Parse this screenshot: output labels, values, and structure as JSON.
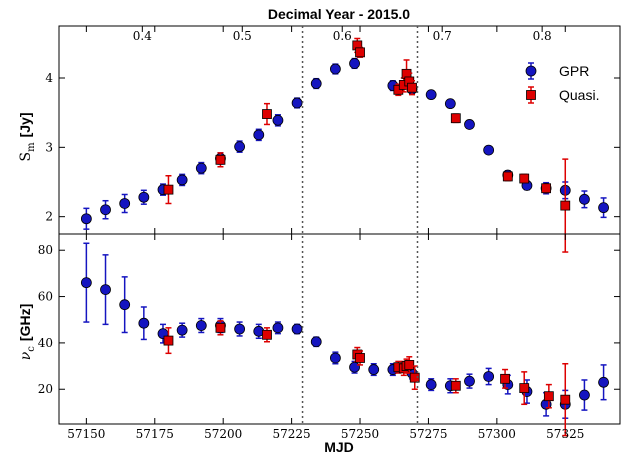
{
  "chart_data": {
    "type": "scatter",
    "top_axis_title": "Decimal Year - 2015.0",
    "top_ticks": [
      "0.4",
      "0.5",
      "0.6",
      "0.7",
      "0.8"
    ],
    "top_tick_values": [
      0.4,
      0.5,
      0.6,
      0.7,
      0.8
    ],
    "top_axis_conversion": {
      "year_fraction_at_x0": 0.5603,
      "x0": 57229,
      "days_per_year": 365.25
    },
    "xlabel": "MJD",
    "xticks": [
      "57150",
      "57175",
      "57200",
      "57225",
      "57250",
      "57275",
      "57300",
      "57325"
    ],
    "xtick_values": [
      57150,
      57175,
      57200,
      57225,
      57250,
      57275,
      57300,
      57325
    ],
    "xlim": [
      57140,
      57345
    ],
    "vlines": [
      57229,
      57271
    ],
    "legend": {
      "placement": "top-right",
      "entries": [
        "GPR",
        "Quasi."
      ]
    },
    "panels": [
      {
        "ylabel_main": "S",
        "ylabel_sub": "m",
        "ylabel_unit": "[Jy]",
        "ylim": [
          1.75,
          4.75
        ],
        "yticks": [
          "2",
          "3",
          "4"
        ],
        "ytick_values": [
          2,
          3,
          4
        ],
        "series": [
          {
            "name": "GPR",
            "color": "#1515c0",
            "marker": "circle",
            "points": [
              {
                "x": 57150,
                "y": 1.97,
                "err": 0.15
              },
              {
                "x": 57157,
                "y": 2.1,
                "err": 0.13
              },
              {
                "x": 57164,
                "y": 2.19,
                "err": 0.13
              },
              {
                "x": 57171,
                "y": 2.28,
                "err": 0.1
              },
              {
                "x": 57178,
                "y": 2.39,
                "err": 0.08
              },
              {
                "x": 57185,
                "y": 2.53,
                "err": 0.08
              },
              {
                "x": 57192,
                "y": 2.7,
                "err": 0.08
              },
              {
                "x": 57199,
                "y": 2.84,
                "err": 0.08
              },
              {
                "x": 57206,
                "y": 3.01,
                "err": 0.08
              },
              {
                "x": 57213,
                "y": 3.18,
                "err": 0.08
              },
              {
                "x": 57220,
                "y": 3.39,
                "err": 0.08
              },
              {
                "x": 57227,
                "y": 3.64,
                "err": 0.07
              },
              {
                "x": 57234,
                "y": 3.92,
                "err": 0.07
              },
              {
                "x": 57241,
                "y": 4.13,
                "err": 0.07
              },
              {
                "x": 57248,
                "y": 4.21,
                "err": 0.07
              },
              {
                "x": 57262,
                "y": 3.89,
                "err": 0.07
              },
              {
                "x": 57269,
                "y": 3.84,
                "err": 0.07
              },
              {
                "x": 57276,
                "y": 3.76,
                "err": 0.05
              },
              {
                "x": 57283,
                "y": 3.63,
                "err": 0.05
              },
              {
                "x": 57290,
                "y": 3.33,
                "err": 0.05
              },
              {
                "x": 57297,
                "y": 2.96,
                "err": 0.05
              },
              {
                "x": 57304,
                "y": 2.6,
                "err": 0.06
              },
              {
                "x": 57311,
                "y": 2.45,
                "err": 0.06
              },
              {
                "x": 57318,
                "y": 2.41,
                "err": 0.08
              },
              {
                "x": 57325,
                "y": 2.38,
                "err": 0.12
              },
              {
                "x": 57332,
                "y": 2.25,
                "err": 0.12
              },
              {
                "x": 57339,
                "y": 2.13,
                "err": 0.14
              }
            ]
          },
          {
            "name": "Quasi.",
            "color": "#dd0000",
            "marker": "square",
            "points": [
              {
                "x": 57180,
                "y": 2.39,
                "err": 0.2
              },
              {
                "x": 57199,
                "y": 2.82,
                "err": 0.1
              },
              {
                "x": 57216,
                "y": 3.48,
                "err": 0.15
              },
              {
                "x": 57249,
                "y": 4.47,
                "err": 0.1
              },
              {
                "x": 57250,
                "y": 4.37,
                "err": 0.07
              },
              {
                "x": 57264,
                "y": 3.83,
                "err": 0.08
              },
              {
                "x": 57266,
                "y": 3.9,
                "err": 0.1
              },
              {
                "x": 57267,
                "y": 4.06,
                "err": 0.2
              },
              {
                "x": 57268,
                "y": 3.95,
                "err": 0.12
              },
              {
                "x": 57269,
                "y": 3.86,
                "err": 0.1
              },
              {
                "x": 57285,
                "y": 3.42,
                "err": 0.06
              },
              {
                "x": 57304,
                "y": 2.58,
                "err": 0.06
              },
              {
                "x": 57310,
                "y": 2.55,
                "err": 0.06
              },
              {
                "x": 57318,
                "y": 2.41,
                "err": 0.06
              },
              {
                "x": 57325,
                "y": 2.16,
                "err": 0.67
              }
            ]
          }
        ]
      },
      {
        "ylabel_main": "ν",
        "ylabel_sub": "c",
        "ylabel_unit": "[GHz]",
        "ylim": [
          5,
          87
        ],
        "yticks": [
          "20",
          "40",
          "60",
          "80"
        ],
        "ytick_values": [
          20,
          40,
          60,
          80
        ],
        "series": [
          {
            "name": "GPR",
            "color": "#1515c0",
            "marker": "circle",
            "points": [
              {
                "x": 57150,
                "y": 66,
                "err": 17
              },
              {
                "x": 57157,
                "y": 63,
                "err": 15
              },
              {
                "x": 57164,
                "y": 56.5,
                "err": 12
              },
              {
                "x": 57171,
                "y": 48.5,
                "err": 7
              },
              {
                "x": 57178,
                "y": 44,
                "err": 4
              },
              {
                "x": 57185,
                "y": 45.5,
                "err": 3
              },
              {
                "x": 57192,
                "y": 47.5,
                "err": 3
              },
              {
                "x": 57199,
                "y": 47.5,
                "err": 3
              },
              {
                "x": 57206,
                "y": 46,
                "err": 3
              },
              {
                "x": 57213,
                "y": 45,
                "err": 3
              },
              {
                "x": 57220,
                "y": 46.5,
                "err": 2.5
              },
              {
                "x": 57227,
                "y": 46,
                "err": 2
              },
              {
                "x": 57234,
                "y": 40.5,
                "err": 2
              },
              {
                "x": 57241,
                "y": 33.5,
                "err": 2.5
              },
              {
                "x": 57248,
                "y": 29.5,
                "err": 2.5
              },
              {
                "x": 57255,
                "y": 28.5,
                "err": 2.5
              },
              {
                "x": 57262,
                "y": 28.5,
                "err": 2.5
              },
              {
                "x": 57269,
                "y": 27,
                "err": 2.5
              },
              {
                "x": 57276,
                "y": 22,
                "err": 2.5
              },
              {
                "x": 57283,
                "y": 21.5,
                "err": 3
              },
              {
                "x": 57290,
                "y": 23.5,
                "err": 3
              },
              {
                "x": 57297,
                "y": 25.5,
                "err": 3.5
              },
              {
                "x": 57304,
                "y": 22,
                "err": 4
              },
              {
                "x": 57311,
                "y": 19,
                "err": 5
              },
              {
                "x": 57318,
                "y": 13.5,
                "err": 5
              },
              {
                "x": 57325,
                "y": 13.5,
                "err": 6
              },
              {
                "x": 57332,
                "y": 17.5,
                "err": 6.5
              },
              {
                "x": 57339,
                "y": 23,
                "err": 7.5
              }
            ]
          },
          {
            "name": "Quasi.",
            "color": "#dd0000",
            "marker": "square",
            "points": [
              {
                "x": 57180,
                "y": 41,
                "err": 5.5
              },
              {
                "x": 57199,
                "y": 46.5,
                "err": 3
              },
              {
                "x": 57216,
                "y": 43.5,
                "err": 3
              },
              {
                "x": 57249,
                "y": 35,
                "err": 3
              },
              {
                "x": 57250,
                "y": 33.5,
                "err": 3
              },
              {
                "x": 57264,
                "y": 29.5,
                "err": 2.5
              },
              {
                "x": 57266,
                "y": 29,
                "err": 3
              },
              {
                "x": 57267,
                "y": 30,
                "err": 3
              },
              {
                "x": 57268,
                "y": 30.5,
                "err": 3.5
              },
              {
                "x": 57270,
                "y": 25,
                "err": 5
              },
              {
                "x": 57285,
                "y": 21.5,
                "err": 3
              },
              {
                "x": 57303,
                "y": 24.5,
                "err": 4
              },
              {
                "x": 57310,
                "y": 20.5,
                "err": 7
              },
              {
                "x": 57319,
                "y": 17,
                "err": 5
              },
              {
                "x": 57325,
                "y": 15.5,
                "err": 15.5
              }
            ]
          }
        ]
      }
    ]
  }
}
